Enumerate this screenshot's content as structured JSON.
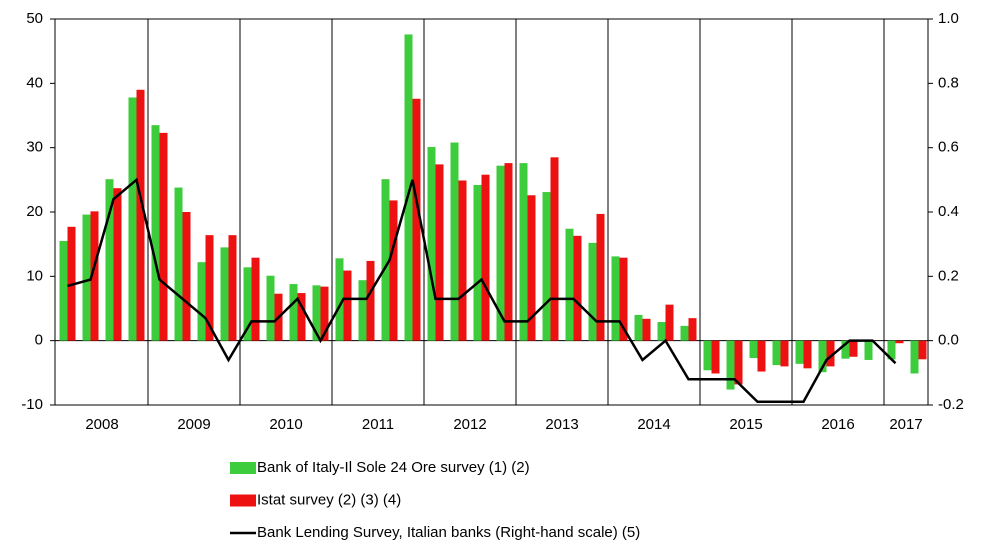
{
  "chart_data": {
    "type": "bar-line",
    "x_labels": [
      "2008",
      "2009",
      "2010",
      "2011",
      "2012",
      "2013",
      "2014",
      "2015",
      "2016",
      "2017"
    ],
    "ylim": [
      -10,
      50
    ],
    "yticks": [
      -10,
      0,
      10,
      20,
      30,
      40,
      50
    ],
    "y2lim": [
      -0.2,
      1.0
    ],
    "y2ticks": [
      -0.2,
      {
        "value": 0,
        "label": "0.0"
      },
      0.2,
      0.4,
      0.6,
      0.8,
      {
        "value": 1,
        "label": "1.0"
      }
    ],
    "series": [
      {
        "name": "Bank of Italy-Il Sole 24 Ore survey (1) (2)",
        "color": "#3ccc3c",
        "kind": "bar",
        "values": [
          15.5,
          19.6,
          25.1,
          37.8,
          33.5,
          23.8,
          12.2,
          14.5,
          11.4,
          10.1,
          8.8,
          8.6,
          12.8,
          9.4,
          25.1,
          47.6,
          30.1,
          30.8,
          24.2,
          27.2,
          27.6,
          23.1,
          17.4,
          15.2,
          13.1,
          4.0,
          2.9,
          2.3,
          -4.6,
          -7.6,
          -2.7,
          -3.8,
          -3.6,
          -4.9,
          -2.8,
          -3.0,
          -2.9,
          -5.1
        ]
      },
      {
        "name": "Istat survey (2) (3) (4)",
        "color": "#ee1111",
        "kind": "bar",
        "values": [
          17.7,
          20.1,
          23.7,
          39.0,
          32.3,
          20.0,
          16.4,
          16.4,
          12.9,
          7.3,
          7.4,
          8.4,
          10.9,
          12.4,
          21.8,
          37.6,
          27.4,
          24.9,
          25.8,
          27.6,
          22.6,
          28.5,
          16.3,
          19.7,
          12.9,
          3.4,
          5.6,
          3.5,
          -5.1,
          -6.8,
          -4.8,
          -4.0,
          -4.3,
          -4.0,
          -2.5,
          0,
          -0.4,
          -2.9
        ]
      },
      {
        "name": "Bank Lending Survey, Italian banks (Right-hand scale) (5)",
        "color": "#000000",
        "kind": "line",
        "axis": "y2",
        "values": [
          0.17,
          0.19,
          0.44,
          0.5,
          0.19,
          0.13,
          0.07,
          -0.06,
          0.06,
          0.06,
          0.13,
          0,
          0.13,
          0.13,
          0.25,
          0.5,
          0.13,
          0.13,
          0.19,
          0.06,
          0.06,
          0.13,
          0.13,
          0.06,
          0.06,
          -0.06,
          0,
          -0.12,
          -0.12,
          -0.12,
          -0.19,
          -0.19,
          -0.19,
          -0.06,
          0,
          0,
          -0.07,
          null
        ]
      }
    ]
  }
}
